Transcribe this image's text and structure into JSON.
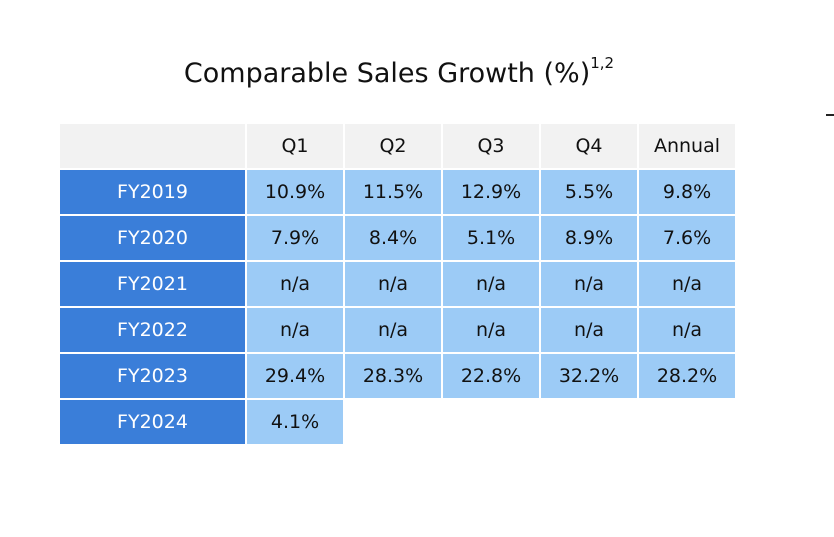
{
  "title": "Comparable Sales Growth (%)",
  "title_superscript": "1,2",
  "columns": [
    "Q1",
    "Q2",
    "Q3",
    "Q4",
    "Annual"
  ],
  "rows": [
    {
      "label": "FY2019",
      "values": [
        "10.9%",
        "11.5%",
        "12.9%",
        "5.5%",
        "9.8%"
      ]
    },
    {
      "label": "FY2020",
      "values": [
        "7.9%",
        "8.4%",
        "5.1%",
        "8.9%",
        "7.6%"
      ]
    },
    {
      "label": "FY2021",
      "values": [
        "n/a",
        "n/a",
        "n/a",
        "n/a",
        "n/a"
      ]
    },
    {
      "label": "FY2022",
      "values": [
        "n/a",
        "n/a",
        "n/a",
        "n/a",
        "n/a"
      ]
    },
    {
      "label": "FY2023",
      "values": [
        "29.4%",
        "28.3%",
        "22.8%",
        "32.2%",
        "28.2%"
      ]
    },
    {
      "label": "FY2024",
      "values": [
        "4.1%"
      ]
    }
  ],
  "colors": {
    "row_header": "#3a7ed9",
    "cell": "#9ccbf6",
    "column_header": "#f2f2f2"
  }
}
